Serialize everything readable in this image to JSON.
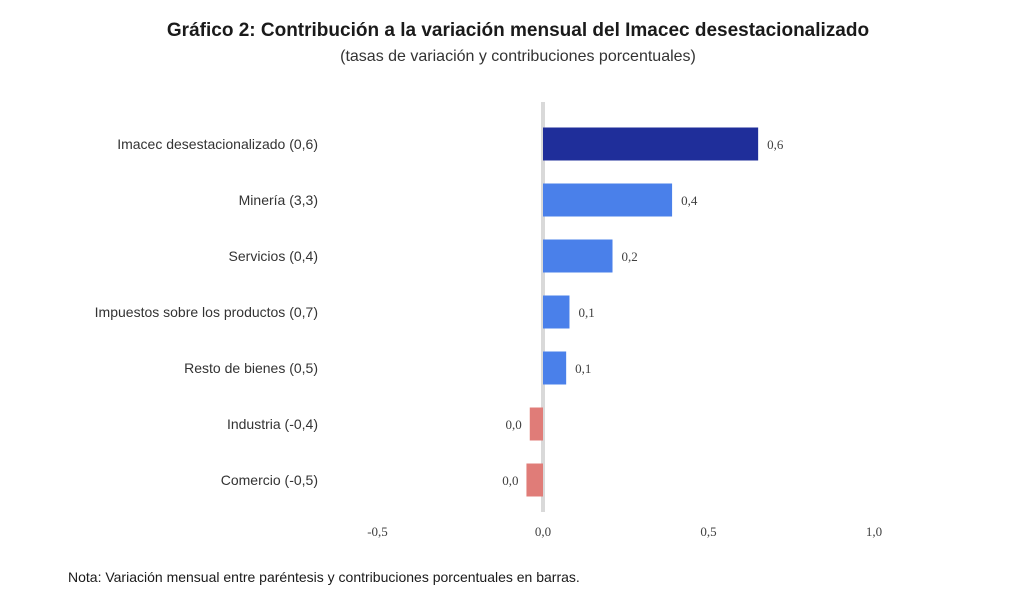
{
  "title": "Gráfico 2: Contribución a la variación mensual del Imacec desestacionalizado",
  "subtitle": "(tasas de variación y contribuciones porcentuales)",
  "note": "Nota: Variación mensual entre paréntesis y contribuciones porcentuales en barras.",
  "colors": {
    "highlight": "#1f2e9a",
    "positive": "#4a80ea",
    "negative": "#e07c78",
    "zero_line": "#d9d9d9"
  },
  "chart_data": {
    "type": "bar",
    "orientation": "horizontal",
    "categories": [
      "Imacec desestacionalizado (0,6)",
      "Minería (3,3)",
      "Servicios (0,4)",
      "Impuestos sobre los productos (0,7)",
      "Resto de bienes (0,5)",
      "Industria (-0,4)",
      "Comercio (-0,5)"
    ],
    "values": [
      0.65,
      0.39,
      0.21,
      0.08,
      0.07,
      -0.04,
      -0.05
    ],
    "data_labels": [
      "0,6",
      "0,4",
      "0,2",
      "0,1",
      "0,1",
      "0,0",
      "0,0"
    ],
    "xlim": [
      -0.5,
      1.0
    ],
    "xticks": [
      -0.5,
      0.0,
      0.5,
      1.0
    ],
    "xtick_labels": [
      "-0,5",
      "0,0",
      "0,5",
      "1,0"
    ],
    "grid": false,
    "legend": "none"
  }
}
